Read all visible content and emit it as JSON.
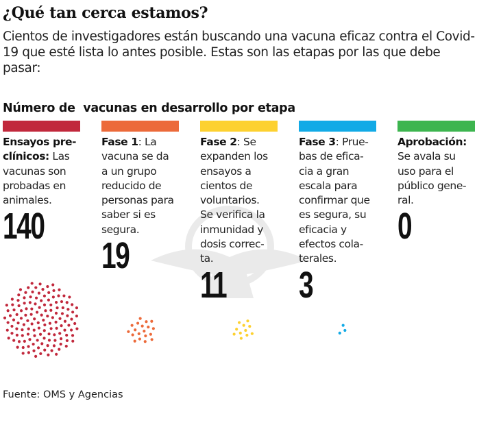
{
  "title": "¿Qué tan cerca estamos?",
  "intro": "Cientos de investigadores están buscando una vacuna eficaz contra el Covid-19 que esté lista lo antes posible. Estas son las etapas por las que debe pasar:",
  "section_title": "Número de  vacunas en desarrollo por etapa",
  "stages": [
    {
      "label": "Ensayos pre-\nclínicos:",
      "description": " Las\nvacunas son\nprobadas en\nanimales.",
      "count": "140",
      "value": 140,
      "color": "#c1283c"
    },
    {
      "label": "Fase 1",
      "description": ": La\nvacuna se da\na un grupo\nreducido de\npersonas para\nsaber si es\nsegura.",
      "count": "19",
      "value": 19,
      "color": "#ec6a3a"
    },
    {
      "label": "Fase 2",
      "description": ": Se\nexpanden los\nensayos a\ncientos de\nvoluntarios.\nSe verifica la\ninmunidad y\ndosis correc-\nta.",
      "count": "11",
      "value": 11,
      "color": "#fdd130"
    },
    {
      "label": "Fase 3",
      "description": ": Prue-\nbas de efica-\ncia a gran\nescala para\nconfirmar que\nes segura, su\neficacia y\nefectos cola-\nterales.",
      "count": "3",
      "value": 3,
      "color": "#12aae6"
    },
    {
      "label": "Aprobación:",
      "description": "\nSe avala su\nuso para el\npúblico gene-\nral.",
      "count": "0",
      "value": 0,
      "color": "#3db54f"
    }
  ],
  "source": "Fuente: OMS y Agencias"
}
